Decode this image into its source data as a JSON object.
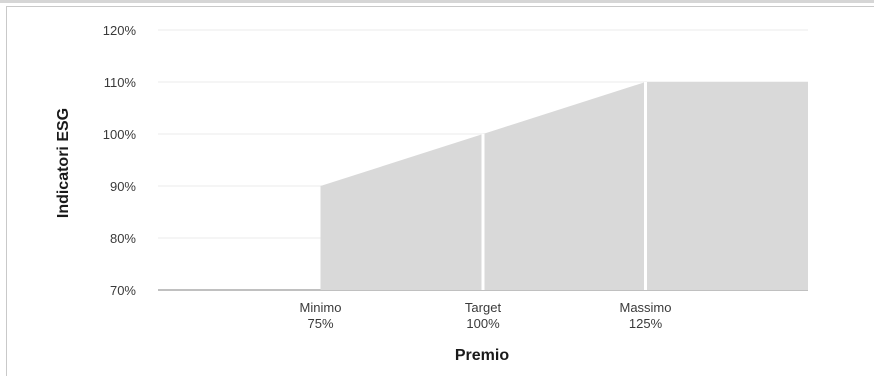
{
  "chart_data": {
    "type": "area",
    "ylabel": "Indicatori ESG",
    "xlabel": "Premio",
    "ylim": [
      70,
      120
    ],
    "yticks": [
      "70%",
      "80%",
      "90%",
      "100%",
      "110%",
      "120%"
    ],
    "ytick_values": [
      70,
      80,
      90,
      100,
      110,
      120
    ],
    "categories": [
      {
        "line1": "Minimo",
        "line2": "75%"
      },
      {
        "line1": "Target",
        "line2": "100%"
      },
      {
        "line1": "Massimo",
        "line2": "125%"
      }
    ],
    "x": [
      75,
      100,
      125,
      150
    ],
    "y": [
      90,
      100,
      110,
      110
    ],
    "grid": true,
    "colors": {
      "fill": "#d9d9d9",
      "divider": "#ffffff",
      "grid": "#ebebeb"
    }
  }
}
